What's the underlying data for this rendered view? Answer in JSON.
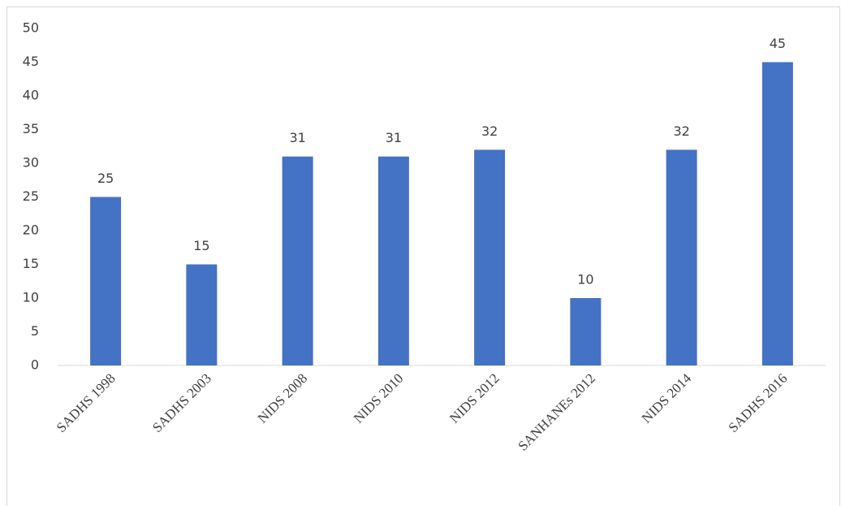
{
  "chart_data": {
    "type": "bar",
    "categories": [
      "SADHS 1998",
      "SADHS 2003",
      "NIDS 2008",
      "NIDS 2010",
      "NIDS 2012",
      "SANHANEs 2012",
      "NIDS 2014",
      "SADHS 2016"
    ],
    "values": [
      25,
      15,
      31,
      31,
      32,
      10,
      32,
      45
    ],
    "color": "#4472c4",
    "ylim": [
      0,
      50
    ],
    "yticks": [
      0,
      5,
      10,
      15,
      20,
      25,
      30,
      35,
      40,
      45,
      50
    ],
    "grid": false
  }
}
